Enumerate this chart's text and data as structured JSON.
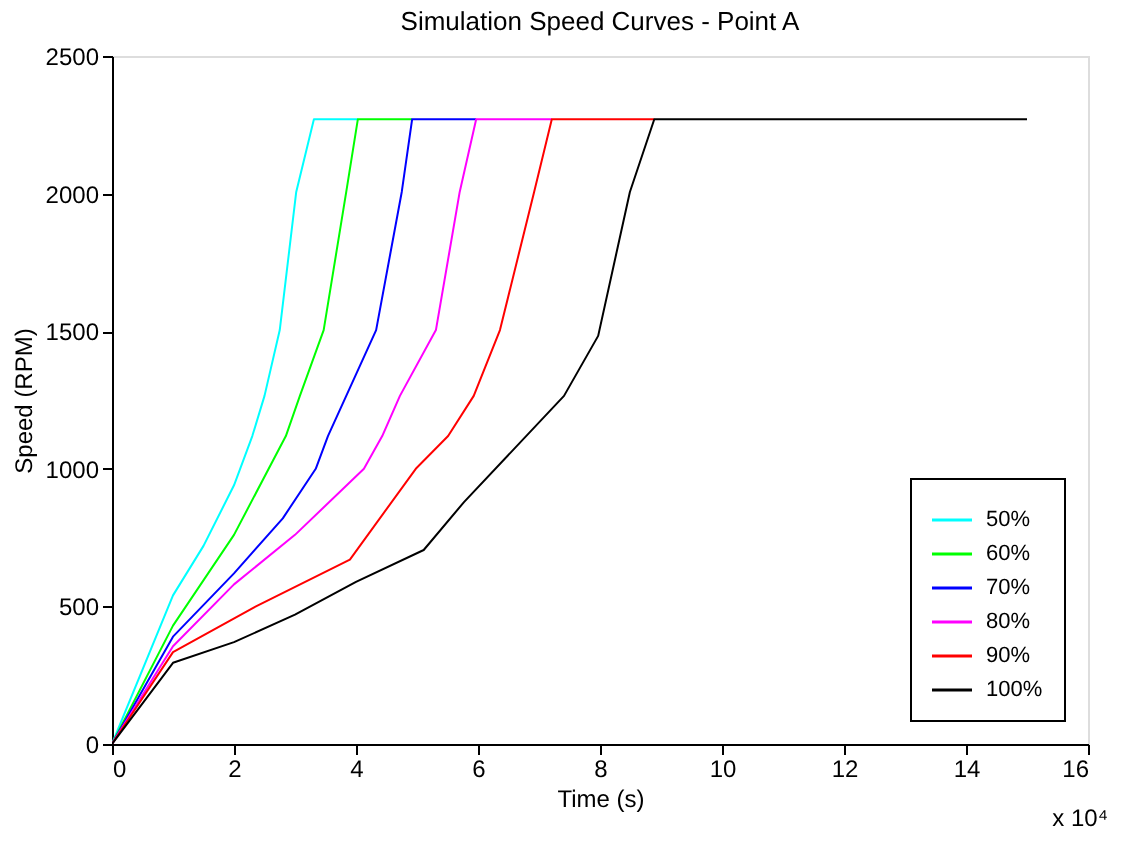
{
  "chart_data": {
    "type": "line",
    "title": "Simulation Speed Curves - Point A",
    "xlabel": "Time (s)",
    "ylabel": "Speed (RPM)",
    "annotations": [
      "x 10⁴"
    ],
    "xlim": [
      0,
      16
    ],
    "xticks": [
      0,
      2,
      4,
      6,
      8,
      10,
      12,
      14,
      16
    ],
    "ylim": [
      0,
      2500
    ],
    "yticks": [
      0,
      500,
      1000,
      1500,
      2000,
      2500
    ],
    "grid": false,
    "legend": "bottom right",
    "marker": "none",
    "line_style": "solid",
    "series": [
      {
        "name": "50%",
        "color": "#00ffff",
        "x": [
          0,
          1,
          1.5,
          2,
          2.3,
          2.5,
          2.75,
          3.02,
          3.31,
          4.03
        ],
        "values": [
          0,
          540,
          720,
          940,
          1119,
          1265,
          1504,
          2006,
          2270,
          2270
        ]
      },
      {
        "name": "60%",
        "color": "#00ff00",
        "x": [
          0,
          1,
          2,
          2.85,
          3.08,
          3.47,
          3.84,
          4.03,
          4.92
        ],
        "values": [
          0,
          430,
          760,
          1119,
          1265,
          1504,
          2006,
          2270,
          2270
        ]
      },
      {
        "name": "70%",
        "color": "#0000ff",
        "x": [
          0,
          1,
          2,
          2.8,
          3.34,
          3.54,
          3.84,
          4.33,
          4.75,
          4.92,
          5.97
        ],
        "values": [
          0,
          390,
          620,
          820,
          1000,
          1119,
          1265,
          1504,
          2006,
          2270,
          2270
        ]
      },
      {
        "name": "80%",
        "color": "#ff00ff",
        "x": [
          0,
          1,
          2,
          3,
          4.13,
          4.43,
          4.72,
          5.31,
          5.7,
          5.97,
          7.21
        ],
        "values": [
          0,
          355,
          580,
          760,
          1000,
          1119,
          1265,
          1504,
          2006,
          2270,
          2270
        ]
      },
      {
        "name": "90%",
        "color": "#ff0000",
        "x": [
          0,
          1,
          2.36,
          3.9,
          4.98,
          5.51,
          5.93,
          6.36,
          6.92,
          7.21,
          8.89
        ],
        "values": [
          0,
          334,
          500,
          670,
          1000,
          1119,
          1265,
          1504,
          2006,
          2270,
          2270
        ]
      },
      {
        "name": "100%",
        "color": "#000000",
        "x": [
          0,
          1,
          2,
          3,
          4,
          5.11,
          5.77,
          7.41,
          7.97,
          8.49,
          8.89,
          15
        ],
        "values": [
          0,
          295,
          370,
          470,
          589,
          705,
          879,
          1265,
          1483,
          2006,
          2270,
          2270
        ]
      }
    ]
  }
}
